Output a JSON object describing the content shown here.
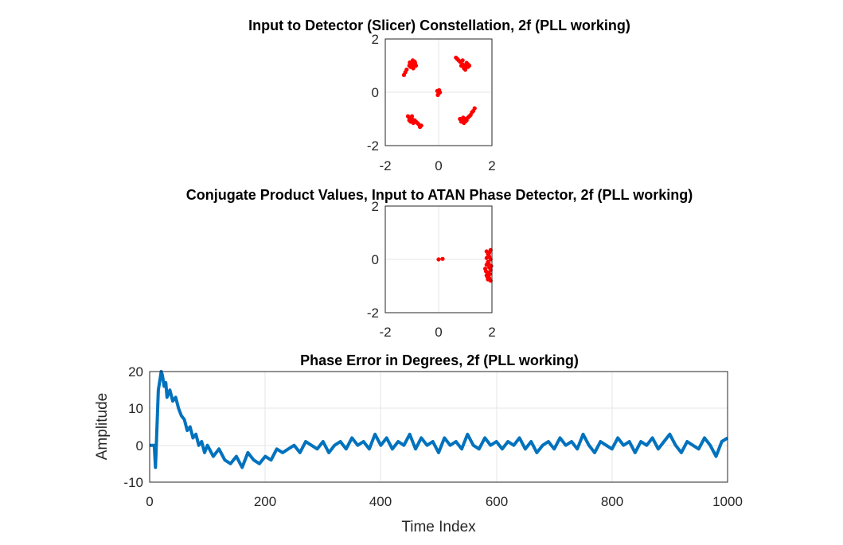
{
  "colors": {
    "points": "#ff0000",
    "line": "#0072bd",
    "grid": "#e6e6e6",
    "axis": "#262626"
  },
  "chart_data": [
    {
      "type": "scatter",
      "title": "Input to Detector (Slicer) Constellation, 2f (PLL working)",
      "xlabel": "",
      "ylabel": "",
      "xlim": [
        -2,
        2
      ],
      "ylim": [
        -2,
        2
      ],
      "xticks": [
        -2,
        0,
        2
      ],
      "yticks": [
        -2,
        0,
        2
      ],
      "grid": true,
      "series": [
        {
          "values": [
            [
              -0.95,
              1.05
            ],
            [
              -1.0,
              1.1
            ],
            [
              -0.9,
              1.15
            ],
            [
              -1.05,
              0.95
            ],
            [
              -0.85,
              1.0
            ],
            [
              -1.1,
              1.0
            ],
            [
              -0.95,
              0.9
            ],
            [
              -1.2,
              0.85
            ],
            [
              -1.25,
              0.75
            ],
            [
              -1.3,
              0.65
            ],
            [
              -0.88,
              1.1
            ],
            [
              -1.0,
              1.0
            ],
            [
              -0.92,
              0.98
            ],
            [
              -1.08,
              1.12
            ],
            [
              -0.97,
              1.2
            ],
            [
              0.9,
              1.05
            ],
            [
              1.0,
              1.0
            ],
            [
              1.1,
              0.95
            ],
            [
              0.8,
              1.15
            ],
            [
              0.7,
              1.25
            ],
            [
              0.65,
              1.3
            ],
            [
              0.95,
              0.9
            ],
            [
              1.05,
              1.1
            ],
            [
              1.15,
              1.0
            ],
            [
              0.85,
              1.0
            ],
            [
              1.0,
              0.85
            ],
            [
              0.75,
              1.2
            ],
            [
              1.1,
              1.05
            ],
            [
              0.9,
              1.2
            ],
            [
              -1.1,
              -0.95
            ],
            [
              -1.0,
              -1.0
            ],
            [
              -0.9,
              -1.05
            ],
            [
              -1.05,
              -1.1
            ],
            [
              -0.95,
              -1.15
            ],
            [
              -1.15,
              -0.9
            ],
            [
              -0.85,
              -1.1
            ],
            [
              -0.75,
              -1.2
            ],
            [
              -0.65,
              -1.25
            ],
            [
              -1.1,
              -1.05
            ],
            [
              -0.8,
              -1.15
            ],
            [
              -1.0,
              -0.9
            ],
            [
              -0.7,
              -1.3
            ],
            [
              -0.92,
              -1.08
            ],
            [
              0.9,
              -1.05
            ],
            [
              1.0,
              -1.0
            ],
            [
              0.85,
              -1.1
            ],
            [
              1.1,
              -0.95
            ],
            [
              1.2,
              -0.85
            ],
            [
              1.3,
              -0.7
            ],
            [
              1.35,
              -0.6
            ],
            [
              0.95,
              -1.15
            ],
            [
              1.05,
              -1.05
            ],
            [
              1.15,
              -0.9
            ],
            [
              0.8,
              -1.0
            ],
            [
              1.0,
              -1.1
            ],
            [
              1.25,
              -0.75
            ],
            [
              0.92,
              -0.95
            ],
            [
              -0.05,
              0.05
            ],
            [
              0.0,
              -0.05
            ],
            [
              0.05,
              0.0
            ],
            [
              -0.03,
              -0.1
            ],
            [
              0.02,
              0.08
            ]
          ]
        }
      ]
    },
    {
      "type": "scatter",
      "title": "Conjugate Product Values, Input to ATAN Phase Detector, 2f (PLL working)",
      "xlabel": "",
      "ylabel": "",
      "xlim": [
        -2,
        2
      ],
      "ylim": [
        -2,
        2
      ],
      "xticks": [
        -2,
        0,
        2
      ],
      "yticks": [
        -2,
        0,
        2
      ],
      "grid": true,
      "series": [
        {
          "values": [
            [
              0.0,
              0.0
            ],
            [
              0.15,
              0.02
            ],
            [
              1.8,
              0.3
            ],
            [
              1.85,
              0.2
            ],
            [
              1.9,
              0.1
            ],
            [
              1.95,
              0.0
            ],
            [
              1.85,
              -0.1
            ],
            [
              1.8,
              -0.2
            ],
            [
              1.9,
              -0.3
            ],
            [
              1.95,
              -0.4
            ],
            [
              1.85,
              -0.5
            ],
            [
              1.8,
              -0.6
            ],
            [
              1.9,
              -0.7
            ],
            [
              1.95,
              -0.8
            ],
            [
              1.85,
              -0.75
            ],
            [
              1.75,
              -0.35
            ],
            [
              1.9,
              0.25
            ],
            [
              1.95,
              0.35
            ],
            [
              1.8,
              0.05
            ],
            [
              1.88,
              -0.15
            ],
            [
              1.92,
              -0.55
            ],
            [
              1.78,
              -0.45
            ],
            [
              1.83,
              -0.65
            ],
            [
              1.97,
              -0.25
            ],
            [
              1.87,
              0.15
            ]
          ]
        }
      ]
    },
    {
      "type": "line",
      "title": "Phase Error in Degrees, 2f (PLL working)",
      "xlabel": "Time Index",
      "ylabel": "Amplitude",
      "xlim": [
        0,
        1000
      ],
      "ylim": [
        -10,
        20
      ],
      "xticks": [
        0,
        200,
        400,
        600,
        800,
        1000
      ],
      "yticks": [
        -10,
        0,
        10,
        20
      ],
      "grid": true,
      "series": [
        {
          "x": [
            0,
            5,
            8,
            10,
            12,
            15,
            18,
            20,
            22,
            25,
            28,
            30,
            35,
            40,
            45,
            50,
            55,
            60,
            65,
            70,
            75,
            80,
            85,
            90,
            95,
            100,
            110,
            120,
            130,
            140,
            150,
            160,
            170,
            180,
            190,
            200,
            210,
            220,
            230,
            240,
            250,
            260,
            270,
            280,
            290,
            300,
            310,
            320,
            330,
            340,
            350,
            360,
            370,
            380,
            390,
            400,
            410,
            420,
            430,
            440,
            450,
            460,
            470,
            480,
            490,
            500,
            510,
            520,
            530,
            540,
            550,
            560,
            570,
            580,
            590,
            600,
            610,
            620,
            630,
            640,
            650,
            660,
            670,
            680,
            690,
            700,
            710,
            720,
            730,
            740,
            750,
            760,
            770,
            780,
            790,
            800,
            810,
            820,
            830,
            840,
            850,
            860,
            870,
            880,
            890,
            900,
            910,
            920,
            930,
            940,
            950,
            960,
            970,
            980,
            990,
            1000
          ],
          "y": [
            0,
            0,
            0,
            -6,
            2,
            15,
            18,
            20,
            19,
            16,
            17,
            13,
            15,
            12,
            13,
            10,
            8,
            7,
            4,
            5,
            2,
            3,
            0,
            1,
            -2,
            0,
            -3,
            -1,
            -4,
            -5,
            -3,
            -6,
            -2,
            -4,
            -5,
            -3,
            -4,
            -1,
            -2,
            -1,
            0,
            -2,
            1,
            0,
            -1,
            1,
            -2,
            0,
            1,
            -1,
            2,
            0,
            1,
            -1,
            3,
            0,
            2,
            -1,
            1,
            0,
            3,
            -1,
            2,
            0,
            1,
            -2,
            2,
            0,
            1,
            -1,
            3,
            0,
            -1,
            2,
            0,
            1,
            -1,
            1,
            0,
            2,
            -1,
            1,
            -2,
            0,
            1,
            -1,
            2,
            0,
            1,
            -1,
            3,
            0,
            -2,
            1,
            0,
            -1,
            2,
            0,
            1,
            -2,
            1,
            0,
            2,
            -1,
            1,
            3,
            0,
            -2,
            1,
            0,
            -1,
            2,
            0,
            -3,
            1,
            2
          ]
        }
      ]
    }
  ]
}
